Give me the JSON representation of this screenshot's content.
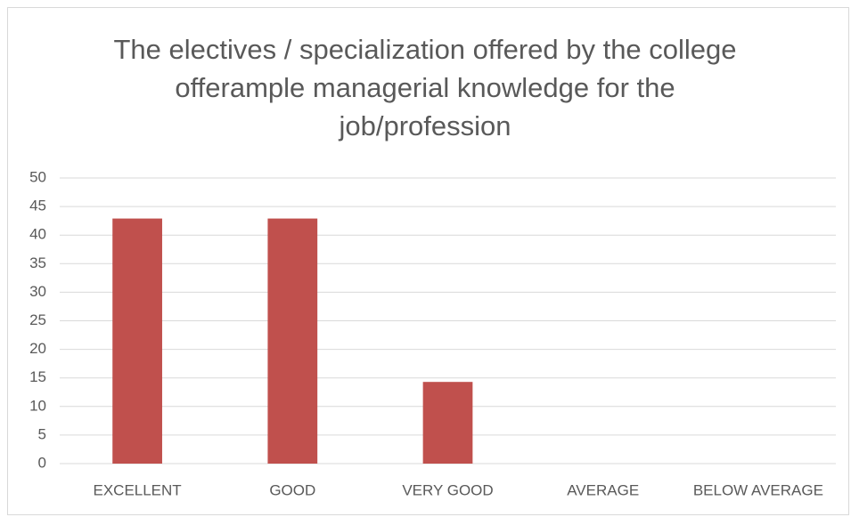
{
  "chart_data": {
    "type": "bar",
    "title": "The electives / specialization offered by the college offerample managerial knowledge for the job/profession",
    "categories": [
      "EXCELLENT",
      "GOOD",
      "VERY GOOD",
      "AVERAGE",
      "BELOW AVERAGE"
    ],
    "values": [
      42.9,
      42.9,
      14.3,
      0,
      0
    ],
    "color": "#c0504d",
    "ylim": [
      0,
      50
    ],
    "yticks": [
      0,
      5,
      10,
      15,
      20,
      25,
      30,
      35,
      40,
      45,
      50
    ],
    "grid": true
  }
}
